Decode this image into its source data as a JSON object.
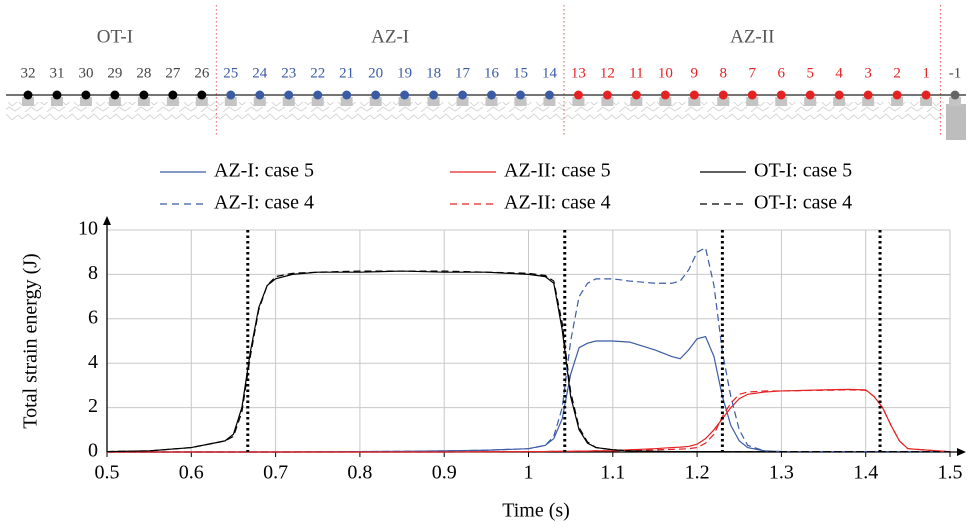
{
  "diagram": {
    "sections": [
      {
        "label": "OT-I",
        "color": "#000000",
        "text_color": "#444444",
        "nodes": [
          "32",
          "31",
          "30",
          "29",
          "28",
          "27",
          "26"
        ]
      },
      {
        "label": "AZ-I",
        "color": "#3b5ba5",
        "text_color": "#3b5ba5",
        "nodes": [
          "25",
          "24",
          "23",
          "22",
          "21",
          "20",
          "19",
          "18",
          "17",
          "16",
          "15",
          "14"
        ]
      },
      {
        "label": "AZ-II",
        "color": "#e52222",
        "text_color": "#e52222",
        "nodes": [
          "13",
          "12",
          "11",
          "10",
          "9",
          "8",
          "7",
          "6",
          "5",
          "4",
          "3",
          "2",
          "1"
        ]
      },
      {
        "color": "#666666",
        "text_color": "#444444",
        "nodes": [
          "-1"
        ]
      }
    ]
  },
  "chart_data": {
    "type": "line",
    "xlabel": "Time (s)",
    "ylabel": "Total strain energy (J)",
    "xlim": [
      0.5,
      1.5
    ],
    "xticks": [
      0.5,
      0.6,
      0.7,
      0.8,
      0.9,
      1,
      1.1,
      1.2,
      1.3,
      1.4,
      1.5
    ],
    "ylim": [
      0,
      10
    ],
    "yticks": [
      0,
      2,
      4,
      6,
      8,
      10
    ],
    "grid": true,
    "vlines": [
      0.667,
      1.043,
      1.23,
      1.417
    ],
    "x": [
      0.5,
      0.55,
      0.6,
      0.62,
      0.64,
      0.65,
      0.66,
      0.67,
      0.68,
      0.69,
      0.7,
      0.72,
      0.75,
      0.8,
      0.85,
      0.9,
      0.95,
      1.0,
      1.02,
      1.03,
      1.04,
      1.05,
      1.06,
      1.07,
      1.08,
      1.1,
      1.12,
      1.15,
      1.17,
      1.18,
      1.19,
      1.2,
      1.21,
      1.22,
      1.23,
      1.24,
      1.25,
      1.26,
      1.28,
      1.3,
      1.35,
      1.38,
      1.4,
      1.41,
      1.42,
      1.43,
      1.44,
      1.45,
      1.5
    ],
    "series": [
      {
        "name": "AZ-I: case 5",
        "color": "#3b5ba5",
        "dash": false,
        "values": [
          0,
          0,
          0,
          0,
          0,
          0,
          0,
          0,
          0,
          0,
          0,
          0,
          0.01,
          0.02,
          0.03,
          0.05,
          0.08,
          0.15,
          0.3,
          0.6,
          1.5,
          3.5,
          4.7,
          4.9,
          5.0,
          5.0,
          4.95,
          4.6,
          4.3,
          4.2,
          4.6,
          5.1,
          5.2,
          4.3,
          2.5,
          1.2,
          0.5,
          0.2,
          0.05,
          0.02,
          0.02,
          0.02,
          0.02,
          0.02,
          0.02,
          0.02,
          0.02,
          0.02,
          0.02
        ]
      },
      {
        "name": "AZ-II: case 5",
        "color": "#e52222",
        "dash": false,
        "values": [
          0,
          0,
          0,
          0,
          0,
          0,
          0,
          0,
          0,
          0,
          0,
          0,
          0,
          0,
          0,
          0,
          0.01,
          0.02,
          0.02,
          0.03,
          0.03,
          0.03,
          0.04,
          0.04,
          0.05,
          0.05,
          0.1,
          0.15,
          0.2,
          0.22,
          0.25,
          0.35,
          0.6,
          1.0,
          1.5,
          2.0,
          2.4,
          2.6,
          2.7,
          2.75,
          2.8,
          2.82,
          2.8,
          2.5,
          2.0,
          1.2,
          0.5,
          0.15,
          0.01
        ]
      },
      {
        "name": "OT-I: case 5",
        "color": "#000000",
        "dash": false,
        "values": [
          0.02,
          0.05,
          0.2,
          0.35,
          0.5,
          0.8,
          2,
          4.5,
          6.5,
          7.5,
          7.8,
          8.0,
          8.1,
          8.1,
          8.15,
          8.1,
          8.1,
          8.0,
          7.9,
          7.6,
          5.5,
          2.5,
          1.0,
          0.4,
          0.2,
          0.1,
          0.05,
          0.03,
          0.02,
          0.02,
          0.02,
          0.02,
          0.02,
          0.02,
          0.01,
          0.01,
          0.01,
          0.01,
          0.01,
          0.01,
          0.01,
          0.01,
          0.01,
          0.01,
          0.01,
          0.01,
          0.01,
          0.01,
          0.01
        ]
      },
      {
        "name": "AZ-I: case 4",
        "color": "#3b5ba5",
        "dash": true,
        "values": [
          0,
          0,
          0,
          0,
          0,
          0,
          0,
          0,
          0,
          0,
          0,
          0,
          0.01,
          0.02,
          0.03,
          0.05,
          0.08,
          0.15,
          0.3,
          0.7,
          2.0,
          5.0,
          7.0,
          7.6,
          7.8,
          7.8,
          7.7,
          7.6,
          7.6,
          7.7,
          8.2,
          9.0,
          9.2,
          7.5,
          4.5,
          2.5,
          1.0,
          0.3,
          0.05,
          0.02,
          0.02,
          0.02,
          0.02,
          0.02,
          0.02,
          0.02,
          0.02,
          0.02,
          0.02
        ]
      },
      {
        "name": "AZ-II: case 4",
        "color": "#e52222",
        "dash": true,
        "values": [
          0,
          0,
          0,
          0,
          0,
          0,
          0,
          0,
          0,
          0,
          0,
          0,
          0,
          0,
          0,
          0,
          0.01,
          0.02,
          0.02,
          0.03,
          0.03,
          0.03,
          0.04,
          0.04,
          0.05,
          0.05,
          0.08,
          0.1,
          0.12,
          0.13,
          0.15,
          0.2,
          0.4,
          0.8,
          1.6,
          2.2,
          2.6,
          2.7,
          2.75,
          2.75,
          2.78,
          2.8,
          2.78,
          2.5,
          2.0,
          1.2,
          0.5,
          0.15,
          0.01
        ]
      },
      {
        "name": "OT-I: case 4",
        "color": "#000000",
        "dash": true,
        "values": [
          0.02,
          0.05,
          0.2,
          0.35,
          0.5,
          0.7,
          1.8,
          4.3,
          6.4,
          7.5,
          7.9,
          8.05,
          8.1,
          8.15,
          8.15,
          8.15,
          8.1,
          8.05,
          7.95,
          7.7,
          5.8,
          2.7,
          1.1,
          0.45,
          0.2,
          0.1,
          0.05,
          0.03,
          0.02,
          0.02,
          0.02,
          0.02,
          0.02,
          0.02,
          0.01,
          0.01,
          0.01,
          0.01,
          0.01,
          0.01,
          0.01,
          0.01,
          0.01,
          0.01,
          0.01,
          0.01,
          0.01,
          0.01,
          0.01
        ]
      }
    ]
  }
}
